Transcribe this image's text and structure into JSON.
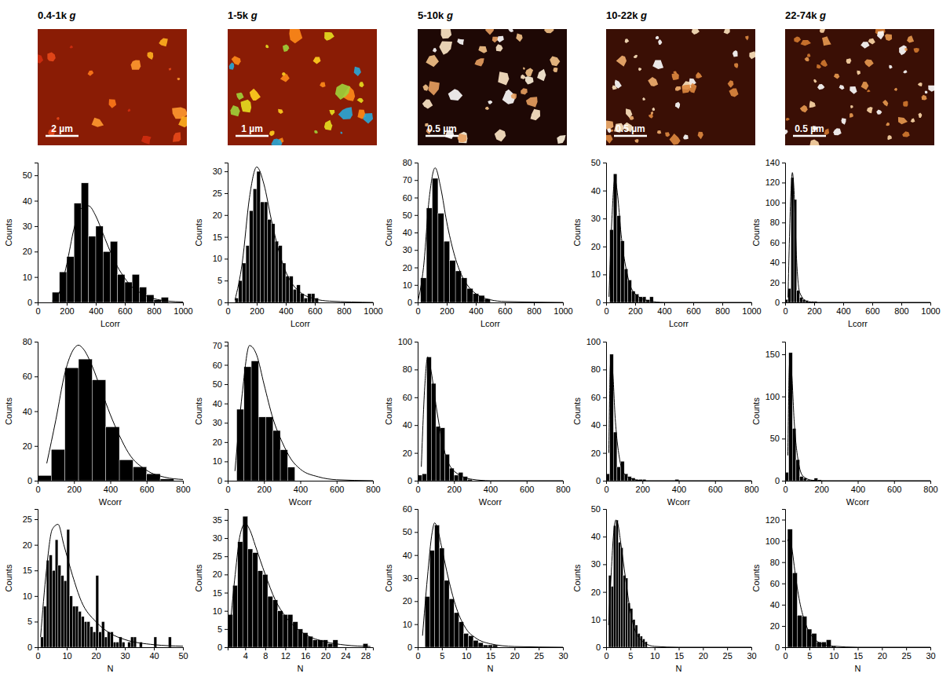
{
  "columns": [
    {
      "title": "0.4-1k g",
      "scale_bar": "2 µm"
    },
    {
      "title": "1-5k g",
      "scale_bar": "1 µm"
    },
    {
      "title": "5-10k g",
      "scale_bar": "0.5 µm"
    },
    {
      "title": "10-22k g",
      "scale_bar": "0.5 µm"
    },
    {
      "title": "22-74k g",
      "scale_bar": "0.5 µm"
    }
  ],
  "chart_data": [
    {
      "type": "histogram",
      "x_label": "Lcorr",
      "y_label": "Counts",
      "color": "#000000",
      "xlim": [
        0,
        1000
      ],
      "xticks": [
        0,
        200,
        400,
        600,
        800,
        1000
      ],
      "ylim": [
        0,
        55
      ],
      "yticks": [
        0,
        10,
        20,
        30,
        40,
        50
      ],
      "bins": [
        100,
        150,
        200,
        250,
        300,
        350,
        400,
        450,
        500,
        550,
        600,
        650,
        700,
        750,
        800,
        850,
        900
      ],
      "counts": [
        4,
        12,
        18,
        39,
        47,
        26,
        30,
        20,
        24,
        11,
        8,
        11,
        6,
        3,
        1,
        2
      ],
      "curve": {
        "x": [
          100,
          150,
          200,
          250,
          300,
          350,
          400,
          450,
          500,
          550,
          600,
          650,
          700,
          800,
          900,
          1000
        ],
        "y": [
          0.5,
          4,
          15,
          29,
          37,
          38,
          34,
          27,
          20,
          14,
          9.5,
          6,
          4,
          1.5,
          0.5,
          0.2
        ]
      }
    },
    {
      "type": "histogram",
      "x_label": "Lcorr",
      "y_label": "Counts",
      "color": "#000000",
      "xlim": [
        0,
        1000
      ],
      "xticks": [
        0,
        200,
        400,
        600,
        800,
        1000
      ],
      "ylim": [
        0,
        32
      ],
      "yticks": [
        0,
        5,
        10,
        15,
        20,
        25,
        30
      ],
      "bins": [
        50,
        75,
        100,
        125,
        150,
        175,
        200,
        225,
        250,
        275,
        300,
        325,
        350,
        375,
        400,
        425,
        450,
        475,
        500,
        525,
        550,
        575,
        600,
        625
      ],
      "counts": [
        1,
        5,
        9,
        13,
        21,
        26,
        30,
        23,
        23,
        19,
        18,
        14,
        13,
        9,
        6,
        6,
        3,
        4,
        2,
        1,
        2,
        2,
        1
      ],
      "curve": {
        "x": [
          50,
          100,
          150,
          200,
          250,
          300,
          350,
          400,
          450,
          500,
          600,
          700,
          1000
        ],
        "y": [
          0.5,
          9,
          24,
          31,
          27,
          19,
          12,
          7,
          4,
          2.3,
          0.8,
          0.3,
          0
        ]
      }
    },
    {
      "type": "histogram",
      "x_label": "Lcorr",
      "y_label": "Counts",
      "color": "#000000",
      "xlim": [
        0,
        1000
      ],
      "xticks": [
        0,
        200,
        400,
        600,
        800,
        1000
      ],
      "ylim": [
        0,
        80
      ],
      "yticks": [
        0,
        10,
        20,
        30,
        40,
        50,
        60,
        70,
        80
      ],
      "bins": [
        20,
        60,
        100,
        140,
        180,
        220,
        260,
        300,
        340,
        380,
        420,
        460,
        500
      ],
      "counts": [
        14,
        54,
        71,
        51,
        35,
        24,
        18,
        14,
        8,
        5,
        4,
        2
      ],
      "curve": {
        "x": [
          0,
          40,
          80,
          120,
          160,
          200,
          250,
          300,
          350,
          400,
          500,
          600,
          1000
        ],
        "y": [
          0,
          20,
          60,
          77,
          65,
          46,
          28,
          16,
          9,
          5,
          1.5,
          0.5,
          0
        ]
      }
    },
    {
      "type": "histogram",
      "x_label": "Lcorr",
      "y_label": "Counts",
      "color": "#000000",
      "xlim": [
        0,
        1000
      ],
      "xticks": [
        0,
        200,
        400,
        600,
        800,
        1000
      ],
      "ylim": [
        0,
        50
      ],
      "yticks": [
        0,
        10,
        20,
        30,
        40,
        50
      ],
      "bins": [
        25,
        50,
        75,
        100,
        125,
        150,
        175,
        200,
        225,
        250,
        275,
        300,
        325
      ],
      "counts": [
        26,
        46,
        31,
        22,
        12,
        8,
        4,
        3,
        2,
        2,
        1,
        2
      ],
      "curve": {
        "x": [
          20,
          40,
          60,
          80,
          100,
          150,
          200,
          300,
          400,
          1000
        ],
        "y": [
          2,
          30,
          44,
          38,
          26,
          9,
          3,
          0.5,
          0,
          0
        ]
      }
    },
    {
      "type": "histogram",
      "x_label": "Lcorr",
      "y_label": "Counts",
      "color": "#000000",
      "xlim": [
        0,
        1000
      ],
      "xticks": [
        0,
        200,
        400,
        600,
        800,
        1000
      ],
      "ylim": [
        0,
        140
      ],
      "yticks": [
        0,
        20,
        40,
        60,
        80,
        100,
        120,
        140
      ],
      "bins": [
        0,
        20,
        40,
        60,
        80,
        100,
        120,
        140,
        160,
        180,
        200,
        220
      ],
      "counts": [
        3,
        14,
        125,
        103,
        12,
        5,
        3,
        2,
        1,
        1,
        1
      ],
      "curve": {
        "x": [
          20,
          40,
          50,
          60,
          80,
          100,
          150,
          200,
          1000
        ],
        "y": [
          5,
          110,
          130,
          115,
          40,
          10,
          1,
          0,
          0
        ]
      }
    },
    {
      "type": "histogram",
      "x_label": "Wcorr",
      "y_label": "Counts",
      "color": "#000000",
      "xlim": [
        0,
        800
      ],
      "xticks": [
        0,
        200,
        400,
        600,
        800
      ],
      "ylim": [
        0,
        80
      ],
      "yticks": [
        0,
        20,
        40,
        60,
        80
      ],
      "bins": [
        0,
        75,
        150,
        225,
        300,
        375,
        450,
        525,
        600,
        675,
        750
      ],
      "counts": [
        3,
        18,
        65,
        70,
        58,
        31,
        12,
        8,
        4,
        1
      ],
      "curve": {
        "x": [
          50,
          100,
          150,
          200,
          225,
          250,
          300,
          350,
          400,
          450,
          500,
          600,
          700,
          800
        ],
        "y": [
          10,
          35,
          62,
          76,
          78,
          76,
          66,
          52,
          38,
          26,
          16,
          6,
          2,
          0.7
        ]
      }
    },
    {
      "type": "histogram",
      "x_label": "Wcorr",
      "y_label": "Counts",
      "color": "#000000",
      "xlim": [
        0,
        800
      ],
      "xticks": [
        0,
        200,
        400,
        600,
        800
      ],
      "ylim": [
        0,
        72
      ],
      "yticks": [
        0,
        10,
        20,
        30,
        40,
        50,
        60,
        70
      ],
      "bins": [
        50,
        90,
        130,
        170,
        210,
        250,
        290,
        330,
        370
      ],
      "counts": [
        37,
        59,
        62,
        33,
        33,
        26,
        16,
        7
      ],
      "curve": {
        "x": [
          40,
          80,
          120,
          160,
          200,
          250,
          300,
          350,
          400,
          500,
          600,
          800
        ],
        "y": [
          5,
          45,
          70,
          65,
          50,
          32,
          20,
          11,
          6,
          2,
          0.5,
          0
        ]
      }
    },
    {
      "type": "histogram",
      "x_label": "Wcorr",
      "y_label": "Counts",
      "color": "#000000",
      "xlim": [
        0,
        800
      ],
      "xticks": [
        0,
        200,
        400,
        600,
        800
      ],
      "ylim": [
        0,
        100
      ],
      "yticks": [
        0,
        20,
        40,
        60,
        80,
        100
      ],
      "bins": [
        0,
        25,
        50,
        75,
        100,
        125,
        150,
        175,
        200,
        225,
        250,
        275,
        300
      ],
      "counts": [
        4,
        5,
        89,
        70,
        39,
        38,
        19,
        9,
        4,
        6,
        3,
        1
      ],
      "curve": {
        "x": [
          20,
          40,
          55,
          75,
          100,
          150,
          200,
          300,
          400,
          800
        ],
        "y": [
          10,
          70,
          89,
          78,
          55,
          20,
          7,
          1,
          0,
          0
        ]
      }
    },
    {
      "type": "histogram",
      "x_label": "Wcorr",
      "y_label": "Counts",
      "color": "#000000",
      "xlim": [
        0,
        800
      ],
      "xticks": [
        0,
        200,
        400,
        600,
        800
      ],
      "ylim": [
        0,
        100
      ],
      "yticks": [
        0,
        20,
        40,
        60,
        80,
        100
      ],
      "bins": [
        0,
        20,
        40,
        60,
        80,
        100,
        120,
        140,
        160,
        180,
        200,
        220,
        240,
        260,
        280,
        300,
        320,
        340,
        360,
        380,
        400
      ],
      "counts": [
        5,
        91,
        35,
        10,
        14,
        5,
        3,
        2,
        1,
        1,
        1,
        0,
        0,
        0,
        0,
        0,
        0,
        0,
        0,
        1
      ],
      "curve": {
        "x": [
          15,
          25,
          35,
          50,
          75,
          100,
          150,
          200,
          800
        ],
        "y": [
          20,
          85,
          80,
          45,
          15,
          5,
          1,
          0,
          0
        ]
      }
    },
    {
      "type": "histogram",
      "x_label": "Wcorr",
      "y_label": "Counts",
      "color": "#000000",
      "xlim": [
        0,
        800
      ],
      "xticks": [
        0,
        200,
        400,
        600,
        800
      ],
      "ylim": [
        0,
        165
      ],
      "yticks": [
        0,
        50,
        100,
        150
      ],
      "bins": [
        0,
        20,
        40,
        60,
        80,
        100,
        120,
        140,
        160,
        180,
        200
      ],
      "counts": [
        10,
        152,
        62,
        25,
        5,
        3,
        1,
        1,
        3,
        1
      ],
      "curve": {
        "x": [
          15,
          25,
          35,
          50,
          75,
          100,
          150,
          200,
          800
        ],
        "y": [
          30,
          140,
          130,
          70,
          20,
          5,
          0.5,
          0,
          0
        ]
      }
    },
    {
      "type": "histogram",
      "x_label": "N",
      "y_label": "Counts",
      "color": "#000000",
      "xlim": [
        0,
        50
      ],
      "xticks": [
        0,
        10,
        20,
        30,
        40,
        50
      ],
      "ylim": [
        0,
        27
      ],
      "yticks": [
        0,
        5,
        10,
        15,
        20,
        25
      ],
      "bins": [
        1,
        2,
        3,
        4,
        5,
        6,
        7,
        8,
        9,
        10,
        11,
        12,
        13,
        14,
        15,
        16,
        17,
        18,
        19,
        20,
        21,
        22,
        23,
        24,
        25,
        26,
        27,
        28,
        29,
        30,
        31,
        32,
        33,
        34,
        35,
        36,
        37,
        38,
        39,
        40,
        41,
        42,
        43,
        44,
        45,
        46
      ],
      "counts": [
        2,
        8,
        17,
        18,
        15,
        21,
        16,
        14,
        13,
        23,
        10,
        8,
        8,
        7,
        6,
        5,
        5,
        4,
        3,
        14,
        3,
        5,
        2,
        3,
        3,
        1,
        1,
        2,
        1,
        0,
        1,
        2,
        2,
        0,
        1,
        0,
        0,
        0,
        0,
        2,
        0,
        0,
        0,
        0,
        2
      ],
      "curve": {
        "x": [
          1,
          3,
          5,
          7,
          9,
          12,
          15,
          20,
          25,
          30,
          40,
          50
        ],
        "y": [
          2,
          15,
          23,
          24,
          20,
          14,
          9,
          5,
          2.7,
          1.5,
          0.5,
          0.2
        ]
      }
    },
    {
      "type": "histogram",
      "x_label": "N",
      "y_label": "Counts",
      "color": "#000000",
      "xlim": [
        0.5,
        29.5
      ],
      "xticks": [
        4,
        8,
        12,
        16,
        20,
        24,
        28
      ],
      "ylim": [
        0,
        38
      ],
      "yticks": [
        0,
        5,
        10,
        15,
        20,
        25,
        30,
        35
      ],
      "bins": [
        0.5,
        1.5,
        2.5,
        3.5,
        4.5,
        5.5,
        6.5,
        7.5,
        8.5,
        9.5,
        10.5,
        11.5,
        12.5,
        13.5,
        14.5,
        15.5,
        16.5,
        17.5,
        18.5,
        19.5,
        20.5,
        21.5,
        22.5,
        23.5,
        24.5,
        25.5,
        26.5,
        27.5,
        28.5
      ],
      "counts": [
        9,
        17,
        29,
        36,
        27,
        26,
        21,
        20,
        14,
        13,
        10,
        9,
        9,
        7,
        5,
        4,
        3,
        2,
        2,
        2,
        1,
        2,
        0,
        0,
        0,
        0,
        0,
        1
      ],
      "curve": {
        "x": [
          1,
          2,
          3,
          4,
          5,
          6,
          8,
          10,
          12,
          14,
          16,
          20,
          24,
          29
        ],
        "y": [
          6,
          20,
          31,
          34,
          32,
          28,
          20,
          13,
          8.5,
          5.5,
          3.5,
          1.5,
          0.6,
          0.2
        ]
      }
    },
    {
      "type": "histogram",
      "x_label": "N",
      "y_label": "Counts",
      "color": "#000000",
      "xlim": [
        0,
        30
      ],
      "xticks": [
        0,
        5,
        10,
        15,
        20,
        25,
        30
      ],
      "ylim": [
        0,
        60
      ],
      "yticks": [
        0,
        10,
        20,
        30,
        40,
        50,
        60
      ],
      "bins": [
        1.5,
        2.5,
        3.5,
        4.5,
        5.5,
        6.5,
        7.5,
        8.5,
        9.5,
        10.5,
        11.5,
        12.5,
        13.5,
        14.5,
        15.5,
        16.5
      ],
      "counts": [
        22,
        42,
        53,
        43,
        29,
        21,
        15,
        11,
        6,
        5,
        3,
        2,
        1,
        1,
        1
      ],
      "curve": {
        "x": [
          1,
          2,
          3,
          3.5,
          4,
          5,
          6,
          8,
          10,
          12,
          15,
          20,
          30
        ],
        "y": [
          5,
          30,
          50,
          54,
          52,
          43,
          33,
          17,
          8,
          4,
          1.5,
          0.3,
          0
        ]
      }
    },
    {
      "type": "histogram",
      "x_label": "N",
      "y_label": "Counts",
      "color": "#000000",
      "xlim": [
        0,
        30
      ],
      "xticks": [
        0,
        5,
        10,
        15,
        20,
        25,
        30
      ],
      "ylim": [
        0,
        50
      ],
      "yticks": [
        0,
        10,
        20,
        30,
        40,
        50
      ],
      "bins": [
        0.5,
        1,
        1.5,
        2,
        2.5,
        3,
        3.5,
        4,
        4.5,
        5,
        5.5,
        6,
        6.5,
        7,
        7.5,
        8,
        8.5
      ],
      "counts": [
        26,
        22,
        44,
        46,
        38,
        36,
        26,
        25,
        16,
        14,
        10,
        8,
        5,
        4,
        3,
        2
      ],
      "curve": {
        "x": [
          0.5,
          1,
          1.5,
          2,
          2.5,
          3,
          4,
          5,
          6,
          8,
          10,
          15,
          30
        ],
        "y": [
          8,
          25,
          40,
          46,
          44,
          38,
          25,
          13,
          6,
          1.5,
          0.3,
          0,
          0
        ]
      }
    },
    {
      "type": "histogram",
      "x_label": "N",
      "y_label": "Counts",
      "color": "#000000",
      "xlim": [
        0,
        30
      ],
      "xticks": [
        0,
        5,
        10,
        15,
        20,
        25,
        30
      ],
      "ylim": [
        0,
        130
      ],
      "yticks": [
        0,
        20,
        40,
        60,
        80,
        100,
        120
      ],
      "bins": [
        0.5,
        1.5,
        2.5,
        3.5,
        4.5,
        5.5,
        6.5,
        7.5,
        8.5,
        9.5,
        10.5
      ],
      "counts": [
        111,
        70,
        30,
        29,
        17,
        13,
        5,
        5,
        7,
        1
      ],
      "curve": {
        "x": [
          0.5,
          1,
          1.5,
          2,
          3,
          4,
          5,
          6,
          8,
          10,
          15,
          30
        ],
        "y": [
          100,
          103,
          90,
          72,
          43,
          25,
          14,
          8,
          2.5,
          1,
          0,
          0
        ]
      }
    }
  ]
}
